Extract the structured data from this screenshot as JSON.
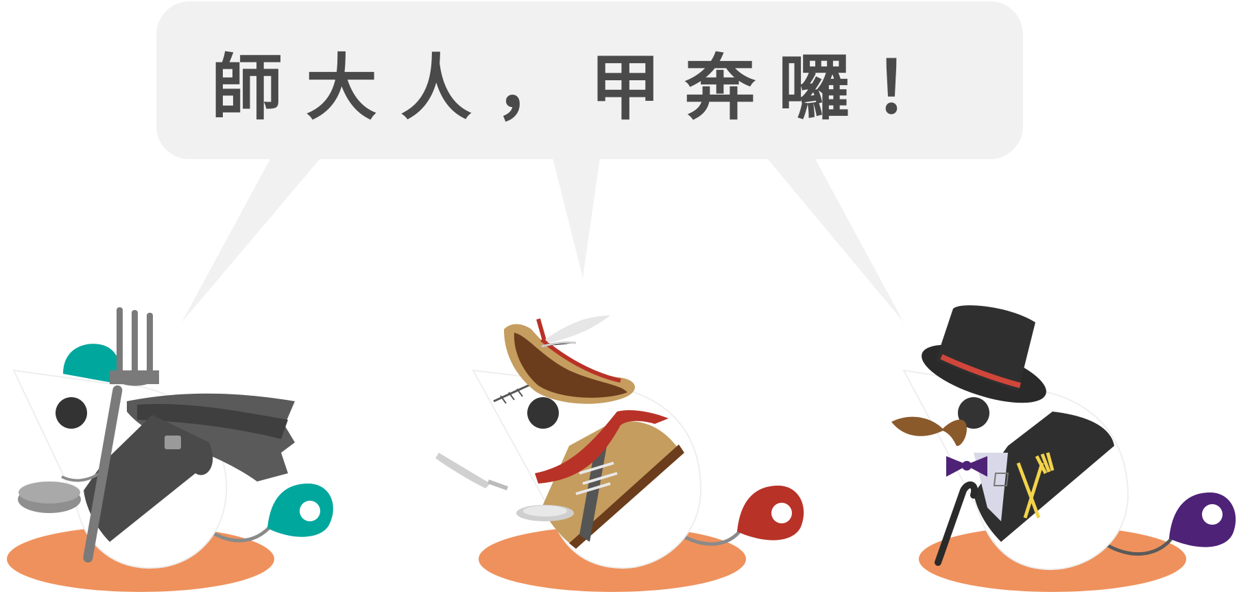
{
  "speech": {
    "text": "師大人，甲奔囉！"
  },
  "colors": {
    "bubble": "#f1f1f1",
    "text": "#4a4a4a",
    "ground": "#ef915c",
    "body": "#ffffff",
    "eye": "#333333",
    "teal": "#00a79d",
    "red": "#b83227",
    "purple": "#4e2277",
    "brown": "#7a4a24",
    "tan": "#c59d5f",
    "dark": "#3a3a3a",
    "gray": "#7a7a7a"
  },
  "characters": [
    {
      "id": "knight",
      "costume": "fork-cape-shield",
      "tail_color": "#00a79d"
    },
    {
      "id": "musketeer",
      "costume": "feather-hat-knife-plate",
      "tail_color": "#b83227"
    },
    {
      "id": "gentleman",
      "costume": "top-hat-mustache-cane",
      "tail_color": "#4e2277"
    }
  ]
}
